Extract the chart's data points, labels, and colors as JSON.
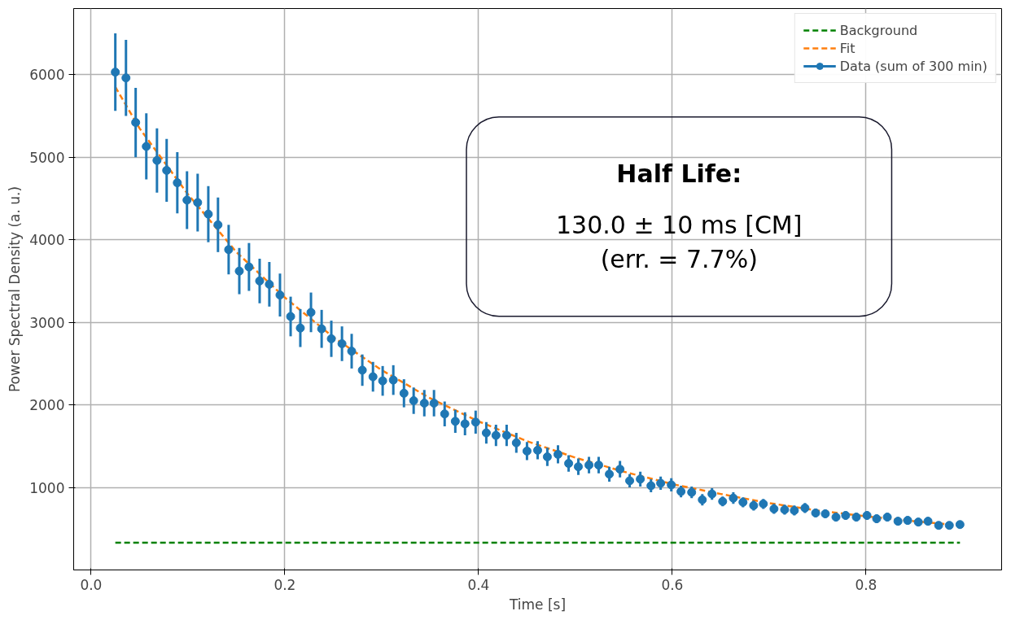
{
  "chart_data": {
    "type": "scatter",
    "xlabel": "Time [s]",
    "ylabel": "Power Spectral Density (a. u.)",
    "xlim": [
      -0.018,
      0.94
    ],
    "ylim": [
      0,
      6800
    ],
    "xticks": [
      {
        "value": 0,
        "label": "0.0"
      },
      0.2,
      0.4,
      0.6,
      0.8
    ],
    "yticks": [
      1000,
      2000,
      3000,
      4000,
      5000,
      6000
    ],
    "grid": true,
    "legend": "top right",
    "annotations": [
      "Half Life:",
      "130.0 ± 10 ms [CM]",
      "(err. = 7.7%)"
    ],
    "series": [
      {
        "name": "Background",
        "type": "line",
        "line_style": "dashed",
        "marker": "none",
        "color": "#008000",
        "x": [
          0.025,
          0.897
        ],
        "values": [
          330,
          330
        ]
      },
      {
        "name": "Fit",
        "type": "line",
        "line_style": "dashed",
        "marker": "none",
        "color": "#ff7f0e",
        "x": [
          0.025,
          0.05,
          0.1,
          0.15,
          0.2,
          0.25,
          0.3,
          0.35,
          0.4,
          0.45,
          0.5,
          0.55,
          0.6,
          0.65,
          0.7,
          0.75,
          0.8,
          0.85,
          0.897
        ],
        "values": [
          5850,
          5350,
          4550,
          3850,
          3300,
          2820,
          2420,
          2080,
          1800,
          1560,
          1360,
          1190,
          1040,
          920,
          810,
          720,
          650,
          590,
          540
        ]
      },
      {
        "name": "Data (sum of 300 min)",
        "marker": "circle",
        "color": "#1f77b4",
        "x": [
          0.025,
          0.036,
          0.046,
          0.057,
          0.068,
          0.078,
          0.089,
          0.099,
          0.11,
          0.121,
          0.131,
          0.142,
          0.153,
          0.163,
          0.174,
          0.184,
          0.195,
          0.206,
          0.216,
          0.227,
          0.238,
          0.248,
          0.259,
          0.269,
          0.28,
          0.291,
          0.301,
          0.312,
          0.323,
          0.333,
          0.344,
          0.354,
          0.365,
          0.376,
          0.386,
          0.397,
          0.408,
          0.418,
          0.429,
          0.439,
          0.45,
          0.461,
          0.471,
          0.482,
          0.493,
          0.503,
          0.514,
          0.524,
          0.535,
          0.546,
          0.556,
          0.567,
          0.578,
          0.588,
          0.599,
          0.609,
          0.62,
          0.631,
          0.641,
          0.652,
          0.663,
          0.673,
          0.684,
          0.694,
          0.705,
          0.716,
          0.726,
          0.737,
          0.748,
          0.758,
          0.769,
          0.779,
          0.79,
          0.801,
          0.811,
          0.822,
          0.833,
          0.843,
          0.854,
          0.864,
          0.875,
          0.886,
          0.897
        ],
        "values": [
          6030,
          5960,
          5420,
          5130,
          4960,
          4840,
          4690,
          4480,
          4450,
          4310,
          4180,
          3880,
          3620,
          3670,
          3500,
          3460,
          3330,
          3070,
          2930,
          3120,
          2920,
          2800,
          2740,
          2650,
          2420,
          2340,
          2290,
          2300,
          2140,
          2050,
          2020,
          2020,
          1890,
          1800,
          1770,
          1790,
          1660,
          1630,
          1630,
          1540,
          1440,
          1450,
          1370,
          1400,
          1290,
          1250,
          1270,
          1270,
          1160,
          1220,
          1080,
          1100,
          1020,
          1050,
          1030,
          950,
          940,
          850,
          920,
          830,
          870,
          820,
          780,
          800,
          740,
          730,
          720,
          750,
          690,
          680,
          640,
          660,
          640,
          660,
          620,
          640,
          590,
          600,
          580,
          590,
          540,
          540,
          550
        ],
        "errors": [
          470,
          460,
          420,
          400,
          390,
          380,
          370,
          350,
          350,
          340,
          330,
          300,
          280,
          290,
          270,
          270,
          260,
          240,
          230,
          240,
          230,
          220,
          210,
          210,
          190,
          180,
          180,
          180,
          170,
          160,
          160,
          160,
          150,
          140,
          140,
          140,
          130,
          130,
          130,
          120,
          110,
          110,
          110,
          110,
          100,
          100,
          100,
          100,
          90,
          100,
          80,
          90,
          80,
          80,
          80,
          70,
          70,
          70,
          70,
          60,
          70,
          60,
          60,
          60,
          60,
          60,
          60,
          60,
          50,
          50,
          50,
          50,
          50,
          50,
          50,
          50,
          50,
          50,
          50,
          50,
          40,
          40,
          40
        ]
      }
    ]
  }
}
